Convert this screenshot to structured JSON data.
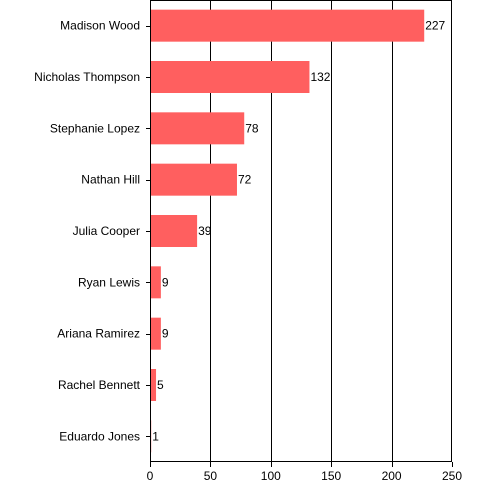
{
  "chart_data": {
    "type": "bar",
    "orientation": "horizontal",
    "categories": [
      "Madison Wood",
      "Nicholas Thompson",
      "Stephanie Lopez",
      "Nathan Hill",
      "Julia Cooper",
      "Ryan Lewis",
      "Ariana Ramirez",
      "Rachel Bennett",
      "Eduardo Jones"
    ],
    "values": [
      227,
      132,
      78,
      72,
      39,
      9,
      9,
      5,
      1
    ],
    "data_labels": [
      "227",
      "132",
      "78",
      "72",
      "39",
      "9",
      "9",
      "5",
      "1"
    ],
    "xlim": [
      0,
      250
    ],
    "x_ticks": [
      0,
      50,
      100,
      150,
      200,
      250
    ],
    "x_tick_labels": [
      "0",
      "50",
      "100",
      "150",
      "200",
      "250"
    ],
    "title": "",
    "xlabel": "",
    "ylabel": "",
    "grid": "vertical",
    "legend": "none",
    "bar_color": "#ff5f5f"
  }
}
